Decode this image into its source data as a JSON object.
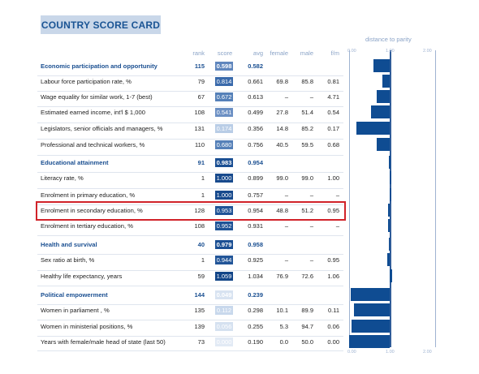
{
  "title": "COUNTRY SCORE CARD",
  "distance_title": "distance to parity",
  "columns": {
    "rank": "rank",
    "score": "score",
    "avg": "avg",
    "female": "female",
    "male": "male",
    "fm": "f/m"
  },
  "axis_ticks_top": [
    "0.00",
    "1.00",
    "2.00"
  ],
  "axis_ticks_bottom": [
    "0.00",
    "1.00",
    "2.00"
  ],
  "colors": {
    "category_text": "#1a4f91",
    "parity_bar": "#0f4c92",
    "highlight_border": "#d1232a"
  },
  "rows": [
    {
      "label": "Economic participation and opportunity",
      "category": true,
      "rank": "115",
      "score": "0.598",
      "score_color": "#5f86bd",
      "avg": "0.582",
      "female": "",
      "male": "",
      "fm": "",
      "parity": 0.598
    },
    {
      "label": "Labour force participation rate, %",
      "category": false,
      "rank": "79",
      "score": "0.814",
      "score_color": "#3a6aab",
      "avg": "0.661",
      "female": "69.8",
      "male": "85.8",
      "fm": "0.81",
      "parity": 0.814
    },
    {
      "label": "Wage equality for similar work, 1-7 (best)",
      "category": false,
      "rank": "67",
      "score": "0.672",
      "score_color": "#5580b8",
      "avg": "0.613",
      "female": "–",
      "male": "–",
      "fm": "4.71",
      "parity": 0.672
    },
    {
      "label": "Estimated earned income, int'l $ 1,000",
      "category": false,
      "rank": "108",
      "score": "0.541",
      "score_color": "#6c90c4",
      "avg": "0.499",
      "female": "27.8",
      "male": "51.4",
      "fm": "0.54",
      "parity": 0.541
    },
    {
      "label": "Legislators, senior officials and managers, %",
      "category": false,
      "rank": "131",
      "score": "0.174",
      "score_color": "#b9cde6",
      "avg": "0.356",
      "female": "14.8",
      "male": "85.2",
      "fm": "0.17",
      "parity": 0.174
    },
    {
      "label": "Professional and technical workers, %",
      "category": false,
      "rank": "110",
      "score": "0.680",
      "score_color": "#5580b8",
      "avg": "0.756",
      "female": "40.5",
      "male": "59.5",
      "fm": "0.68",
      "parity": 0.68
    },
    {
      "label": "Educational attainment",
      "category": true,
      "rank": "91",
      "score": "0.983",
      "score_color": "#1b4f93",
      "avg": "0.954",
      "female": "",
      "male": "",
      "fm": "",
      "parity": 0.983
    },
    {
      "label": "Literacy rate, %",
      "category": false,
      "rank": "1",
      "score": "1.000",
      "score_color": "#184a8d",
      "avg": "0.899",
      "female": "99.0",
      "male": "99.0",
      "fm": "1.00",
      "parity": 1.0
    },
    {
      "label": "Enrolment in primary education, %",
      "category": false,
      "rank": "1",
      "score": "1.000",
      "score_color": "#184a8d",
      "avg": "0.757",
      "female": "–",
      "male": "–",
      "fm": "–",
      "parity": 1.0
    },
    {
      "label": "Enrolment in secondary education, %",
      "category": false,
      "rank": "128",
      "score": "0.953",
      "score_color": "#1f5396",
      "avg": "0.954",
      "female": "48.8",
      "male": "51.2",
      "fm": "0.95",
      "parity": 0.953
    },
    {
      "label": "Enrolment in tertiary education, %",
      "category": false,
      "rank": "108",
      "score": "0.952",
      "score_color": "#1f5396",
      "avg": "0.931",
      "female": "–",
      "male": "–",
      "fm": "–",
      "parity": 0.952
    },
    {
      "label": "Health and survival",
      "category": true,
      "rank": "40",
      "score": "0.979",
      "score_color": "#1b4f93",
      "avg": "0.958",
      "female": "",
      "male": "",
      "fm": "",
      "parity": 0.979
    },
    {
      "label": "Sex ratio at birth, %",
      "category": false,
      "rank": "1",
      "score": "0.944",
      "score_color": "#225598",
      "avg": "0.925",
      "female": "–",
      "male": "–",
      "fm": "0.95",
      "parity": 0.944
    },
    {
      "label": "Healthy life expectancy, years",
      "category": false,
      "rank": "59",
      "score": "1.059",
      "score_color": "#124588",
      "avg": "1.034",
      "female": "76.9",
      "male": "72.6",
      "fm": "1.06",
      "parity": 1.059
    },
    {
      "label": "Political empowerment",
      "category": true,
      "rank": "144",
      "score": "0.049",
      "score_color": "#d8e3f1",
      "avg": "0.239",
      "female": "",
      "male": "",
      "fm": "",
      "parity": 0.049
    },
    {
      "label": "Women in parliament , %",
      "category": false,
      "rank": "135",
      "score": "0.112",
      "score_color": "#c8d8ec",
      "avg": "0.298",
      "female": "10.1",
      "male": "89.9",
      "fm": "0.11",
      "parity": 0.112
    },
    {
      "label": "Women in ministerial positions, %",
      "category": false,
      "rank": "139",
      "score": "0.056",
      "score_color": "#d5e1f0",
      "avg": "0.255",
      "female": "5.3",
      "male": "94.7",
      "fm": "0.06",
      "parity": 0.056
    },
    {
      "label": "Years with female/male head of state (last 50)",
      "category": false,
      "rank": "73",
      "score": "0.000",
      "score_color": "#e2eaf5",
      "avg": "0.190",
      "female": "0.0",
      "male": "50.0",
      "fm": "0.00",
      "parity": 0.0
    }
  ]
}
